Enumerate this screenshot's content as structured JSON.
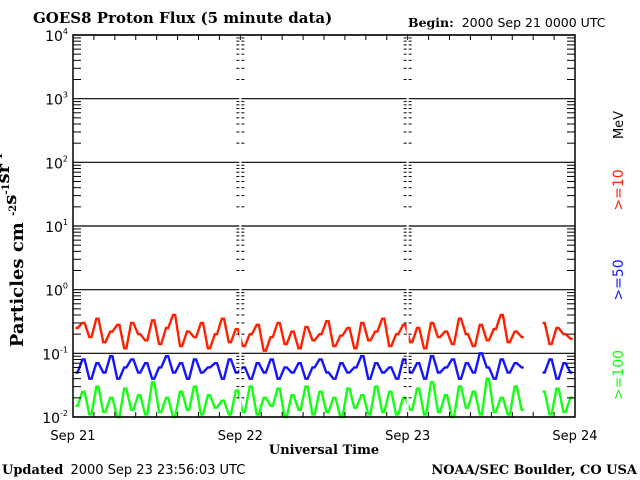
{
  "header": {
    "title": "GOES8 Proton Flux (5 minute data)",
    "begin_label": "Begin:",
    "begin_value": "2000 Sep 21 0000 UTC"
  },
  "footer": {
    "updated_label": "Updated",
    "updated_value": "2000 Sep 23 23:56:03 UTC",
    "credit": "NOAA/SEC Boulder, CO USA"
  },
  "chart_data": {
    "type": "line",
    "title": "GOES8 Proton Flux (5 minute data)",
    "xlabel": "Universal Time",
    "ylabel": "Particles cm",
    "ylabel_units": [
      {
        "base": "",
        "exp": "-2"
      },
      {
        "base": "s",
        "exp": "-1"
      },
      {
        "base": "sr",
        "exp": "-1"
      }
    ],
    "yscale": "log",
    "ylim": [
      0.01,
      10000
    ],
    "xlim_hours": [
      0,
      72
    ],
    "yticks": [
      {
        "value": 10000,
        "base": "10",
        "exp": "4"
      },
      {
        "value": 1000,
        "base": "10",
        "exp": "3"
      },
      {
        "value": 100,
        "base": "10",
        "exp": "2"
      },
      {
        "value": 10,
        "base": "10",
        "exp": "1"
      },
      {
        "value": 1,
        "base": "10",
        "exp": "0"
      },
      {
        "value": 0.1,
        "base": "10",
        "exp": "-1"
      },
      {
        "value": 0.01,
        "base": "10",
        "exp": "-2"
      }
    ],
    "xticks": [
      {
        "hour": 0,
        "label": "Sep 21"
      },
      {
        "hour": 24,
        "label": "Sep 22"
      },
      {
        "hour": 48,
        "label": "Sep 23"
      },
      {
        "hour": 72,
        "label": "Sep 24"
      }
    ],
    "grid": true,
    "legend_unit": "MeV",
    "legend_placement": "right",
    "x_step_hours": 1,
    "series": [
      {
        "name": ">=10",
        "color": "#ff2000",
        "values": [
          0.25,
          0.3,
          0.18,
          0.35,
          0.15,
          0.22,
          0.28,
          0.12,
          0.3,
          0.2,
          0.16,
          0.33,
          0.14,
          0.25,
          0.4,
          0.13,
          0.22,
          0.18,
          0.3,
          0.12,
          0.2,
          0.35,
          0.15,
          0.24,
          0.13,
          0.2,
          0.28,
          0.11,
          0.18,
          0.3,
          0.14,
          0.22,
          0.12,
          0.26,
          0.16,
          0.2,
          0.32,
          0.13,
          0.19,
          0.25,
          0.12,
          0.3,
          0.16,
          0.22,
          0.35,
          0.13,
          0.2,
          0.28,
          0.15,
          0.25,
          0.12,
          0.3,
          0.18,
          0.22,
          0.14,
          0.35,
          0.2,
          0.13,
          0.28,
          0.16,
          0.24,
          0.4,
          0.15,
          0.22,
          0.18,
          null,
          null,
          0.3,
          0.14,
          0.25,
          0.2,
          0.17
        ]
      },
      {
        "name": ">=50",
        "color": "#1414ff",
        "values": [
          0.05,
          0.08,
          0.04,
          0.07,
          0.05,
          0.09,
          0.04,
          0.06,
          0.08,
          0.05,
          0.07,
          0.04,
          0.06,
          0.09,
          0.05,
          0.07,
          0.04,
          0.08,
          0.05,
          0.06,
          0.07,
          0.04,
          0.08,
          0.05,
          0.06,
          0.04,
          0.07,
          0.05,
          0.08,
          0.04,
          0.06,
          0.05,
          0.07,
          0.04,
          0.06,
          0.08,
          0.05,
          0.04,
          0.07,
          0.05,
          0.06,
          0.09,
          0.04,
          0.07,
          0.05,
          0.06,
          0.04,
          0.08,
          0.05,
          0.07,
          0.04,
          0.09,
          0.05,
          0.06,
          0.08,
          0.04,
          0.07,
          0.05,
          0.1,
          0.06,
          0.04,
          0.08,
          0.05,
          0.07,
          0.06,
          null,
          null,
          0.05,
          0.08,
          0.04,
          0.07,
          0.05
        ]
      },
      {
        "name": ">=100",
        "color": "#14ff14",
        "values": [
          0.015,
          0.025,
          0.011,
          0.03,
          0.012,
          0.02,
          0.01,
          0.028,
          0.013,
          0.022,
          0.011,
          0.035,
          0.012,
          0.02,
          0.01,
          0.025,
          0.013,
          0.03,
          0.011,
          0.022,
          0.014,
          0.018,
          0.011,
          0.026,
          0.012,
          0.03,
          0.011,
          0.02,
          0.015,
          0.028,
          0.01,
          0.022,
          0.013,
          0.03,
          0.011,
          0.025,
          0.012,
          0.02,
          0.01,
          0.028,
          0.014,
          0.022,
          0.011,
          0.03,
          0.012,
          0.025,
          0.011,
          0.02,
          0.013,
          0.028,
          0.011,
          0.035,
          0.012,
          0.022,
          0.01,
          0.03,
          0.014,
          0.025,
          0.011,
          0.04,
          0.012,
          0.02,
          0.011,
          0.03,
          0.013,
          null,
          null,
          0.025,
          0.011,
          0.028,
          0.012,
          0.02
        ]
      }
    ]
  }
}
